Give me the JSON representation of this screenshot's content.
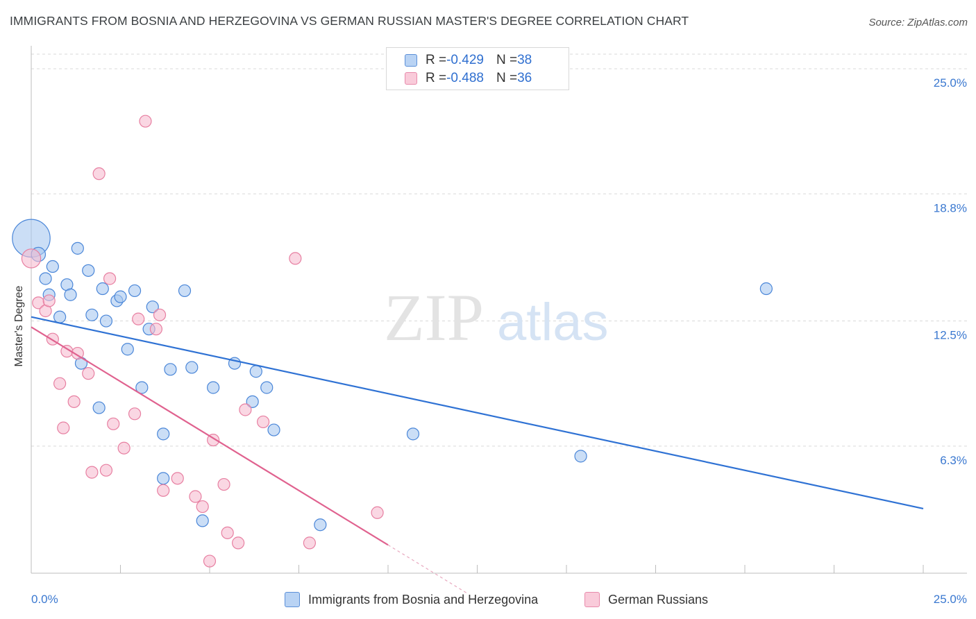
{
  "header": {
    "title": "IMMIGRANTS FROM BOSNIA AND HERZEGOVINA VS GERMAN RUSSIAN MASTER'S DEGREE CORRELATION CHART",
    "source": "Source: ZipAtlas.com"
  },
  "watermark": {
    "zip": "ZIP",
    "atlas": "atlas"
  },
  "legend": {
    "series1": {
      "r_label": "R = ",
      "r_value": "-0.429",
      "n_label": "N = ",
      "n_value": "38"
    },
    "series2": {
      "r_label": "R = ",
      "r_value": "-0.488",
      "n_label": "N = ",
      "n_value": "36"
    }
  },
  "bottom_legend": {
    "series1": "Immigrants from Bosnia and Herzegovina",
    "series2": "German Russians"
  },
  "colors": {
    "blue_fill": "#a9c8f0",
    "blue_stroke": "#4a86d8",
    "blue_line": "#2f72d4",
    "pink_fill": "#f7bcd0",
    "pink_stroke": "#e77fa1",
    "pink_line": "#e0628f",
    "tick_text": "#3a78d0",
    "grid": "#d9d9d9"
  },
  "chart_data": {
    "type": "scatter",
    "title": "IMMIGRANTS FROM BOSNIA AND HERZEGOVINA VS GERMAN RUSSIAN MASTER'S DEGREE CORRELATION CHART",
    "xlabel": "",
    "ylabel": "Master's Degree",
    "xlim": [
      0,
      25
    ],
    "ylim": [
      0,
      26
    ],
    "x_tick_labels": [
      {
        "value": 0,
        "label": "0.0%"
      },
      {
        "value": 25,
        "label": "25.0%"
      }
    ],
    "y_tick_labels": [
      {
        "value": 25.0,
        "label": "25.0%"
      },
      {
        "value": 18.8,
        "label": "18.8%"
      },
      {
        "value": 12.5,
        "label": "12.5%"
      },
      {
        "value": 6.3,
        "label": "6.3%"
      }
    ],
    "series": [
      {
        "name": "Immigrants from Bosnia and Herzegovina",
        "color": "#4a86d8",
        "points": [
          {
            "x": 0.0,
            "y": 16.6,
            "size": 3.2
          },
          {
            "x": 0.2,
            "y": 15.8,
            "size": 1.2
          },
          {
            "x": 0.4,
            "y": 14.6,
            "size": 1
          },
          {
            "x": 0.5,
            "y": 13.8,
            "size": 1
          },
          {
            "x": 0.6,
            "y": 15.2,
            "size": 1
          },
          {
            "x": 0.8,
            "y": 12.7,
            "size": 1
          },
          {
            "x": 1.0,
            "y": 14.3,
            "size": 1
          },
          {
            "x": 1.1,
            "y": 13.8,
            "size": 1
          },
          {
            "x": 1.3,
            "y": 16.1,
            "size": 1
          },
          {
            "x": 1.4,
            "y": 10.4,
            "size": 1
          },
          {
            "x": 1.6,
            "y": 15.0,
            "size": 1
          },
          {
            "x": 1.7,
            "y": 12.8,
            "size": 1
          },
          {
            "x": 1.9,
            "y": 8.2,
            "size": 1
          },
          {
            "x": 2.0,
            "y": 14.1,
            "size": 1
          },
          {
            "x": 2.1,
            "y": 12.5,
            "size": 1
          },
          {
            "x": 2.4,
            "y": 13.5,
            "size": 1
          },
          {
            "x": 2.5,
            "y": 13.7,
            "size": 1
          },
          {
            "x": 2.7,
            "y": 11.1,
            "size": 1
          },
          {
            "x": 2.9,
            "y": 14.0,
            "size": 1
          },
          {
            "x": 3.1,
            "y": 9.2,
            "size": 1
          },
          {
            "x": 3.3,
            "y": 12.1,
            "size": 1
          },
          {
            "x": 3.4,
            "y": 13.2,
            "size": 1
          },
          {
            "x": 3.7,
            "y": 4.7,
            "size": 1
          },
          {
            "x": 3.7,
            "y": 6.9,
            "size": 1
          },
          {
            "x": 3.9,
            "y": 10.1,
            "size": 1
          },
          {
            "x": 4.3,
            "y": 14.0,
            "size": 1
          },
          {
            "x": 4.5,
            "y": 10.2,
            "size": 1
          },
          {
            "x": 4.8,
            "y": 2.6,
            "size": 1
          },
          {
            "x": 5.1,
            "y": 9.2,
            "size": 1
          },
          {
            "x": 5.7,
            "y": 10.4,
            "size": 1
          },
          {
            "x": 6.2,
            "y": 8.5,
            "size": 1
          },
          {
            "x": 6.3,
            "y": 10.0,
            "size": 1
          },
          {
            "x": 6.6,
            "y": 9.2,
            "size": 1
          },
          {
            "x": 6.8,
            "y": 7.1,
            "size": 1
          },
          {
            "x": 8.1,
            "y": 2.4,
            "size": 1
          },
          {
            "x": 10.7,
            "y": 6.9,
            "size": 1
          },
          {
            "x": 15.4,
            "y": 5.8,
            "size": 1
          },
          {
            "x": 20.6,
            "y": 14.1,
            "size": 1
          }
        ]
      },
      {
        "name": "German Russians",
        "color": "#e77fa1",
        "points": [
          {
            "x": 0.0,
            "y": 15.6,
            "size": 1.6
          },
          {
            "x": 0.2,
            "y": 13.4,
            "size": 1
          },
          {
            "x": 0.4,
            "y": 13.0,
            "size": 1
          },
          {
            "x": 0.5,
            "y": 13.5,
            "size": 1
          },
          {
            "x": 0.6,
            "y": 11.6,
            "size": 1
          },
          {
            "x": 0.8,
            "y": 9.4,
            "size": 1
          },
          {
            "x": 0.9,
            "y": 7.2,
            "size": 1
          },
          {
            "x": 1.0,
            "y": 11.0,
            "size": 1
          },
          {
            "x": 1.2,
            "y": 8.5,
            "size": 1
          },
          {
            "x": 1.3,
            "y": 10.9,
            "size": 1
          },
          {
            "x": 1.6,
            "y": 9.9,
            "size": 1
          },
          {
            "x": 1.7,
            "y": 5.0,
            "size": 1
          },
          {
            "x": 1.9,
            "y": 19.8,
            "size": 1
          },
          {
            "x": 2.1,
            "y": 5.1,
            "size": 1
          },
          {
            "x": 2.2,
            "y": 14.6,
            "size": 1
          },
          {
            "x": 2.3,
            "y": 7.4,
            "size": 1
          },
          {
            "x": 2.6,
            "y": 6.2,
            "size": 1
          },
          {
            "x": 2.9,
            "y": 7.9,
            "size": 1
          },
          {
            "x": 3.0,
            "y": 12.6,
            "size": 1
          },
          {
            "x": 3.2,
            "y": 22.4,
            "size": 1
          },
          {
            "x": 3.5,
            "y": 12.1,
            "size": 1
          },
          {
            "x": 3.6,
            "y": 12.8,
            "size": 1
          },
          {
            "x": 3.7,
            "y": 4.1,
            "size": 1
          },
          {
            "x": 4.1,
            "y": 4.7,
            "size": 1
          },
          {
            "x": 4.6,
            "y": 3.8,
            "size": 1
          },
          {
            "x": 4.8,
            "y": 3.3,
            "size": 1
          },
          {
            "x": 5.0,
            "y": 0.6,
            "size": 1
          },
          {
            "x": 5.1,
            "y": 6.6,
            "size": 1
          },
          {
            "x": 5.4,
            "y": 4.4,
            "size": 1
          },
          {
            "x": 5.5,
            "y": 2.0,
            "size": 1
          },
          {
            "x": 5.8,
            "y": 1.5,
            "size": 1
          },
          {
            "x": 6.0,
            "y": 8.1,
            "size": 1
          },
          {
            "x": 6.5,
            "y": 7.5,
            "size": 1
          },
          {
            "x": 7.4,
            "y": 15.6,
            "size": 1
          },
          {
            "x": 7.8,
            "y": 1.5,
            "size": 1
          },
          {
            "x": 9.7,
            "y": 3.0,
            "size": 1
          }
        ]
      }
    ],
    "trend_lines": [
      {
        "series": "Immigrants from Bosnia and Herzegovina",
        "x0": 0,
        "y0": 12.7,
        "x1": 25,
        "y1": 3.2
      },
      {
        "series": "German Russians",
        "x0": 0,
        "y0": 12.2,
        "x1": 10.0,
        "y1": 1.4,
        "dashed_to_x": 12.2
      }
    ]
  }
}
